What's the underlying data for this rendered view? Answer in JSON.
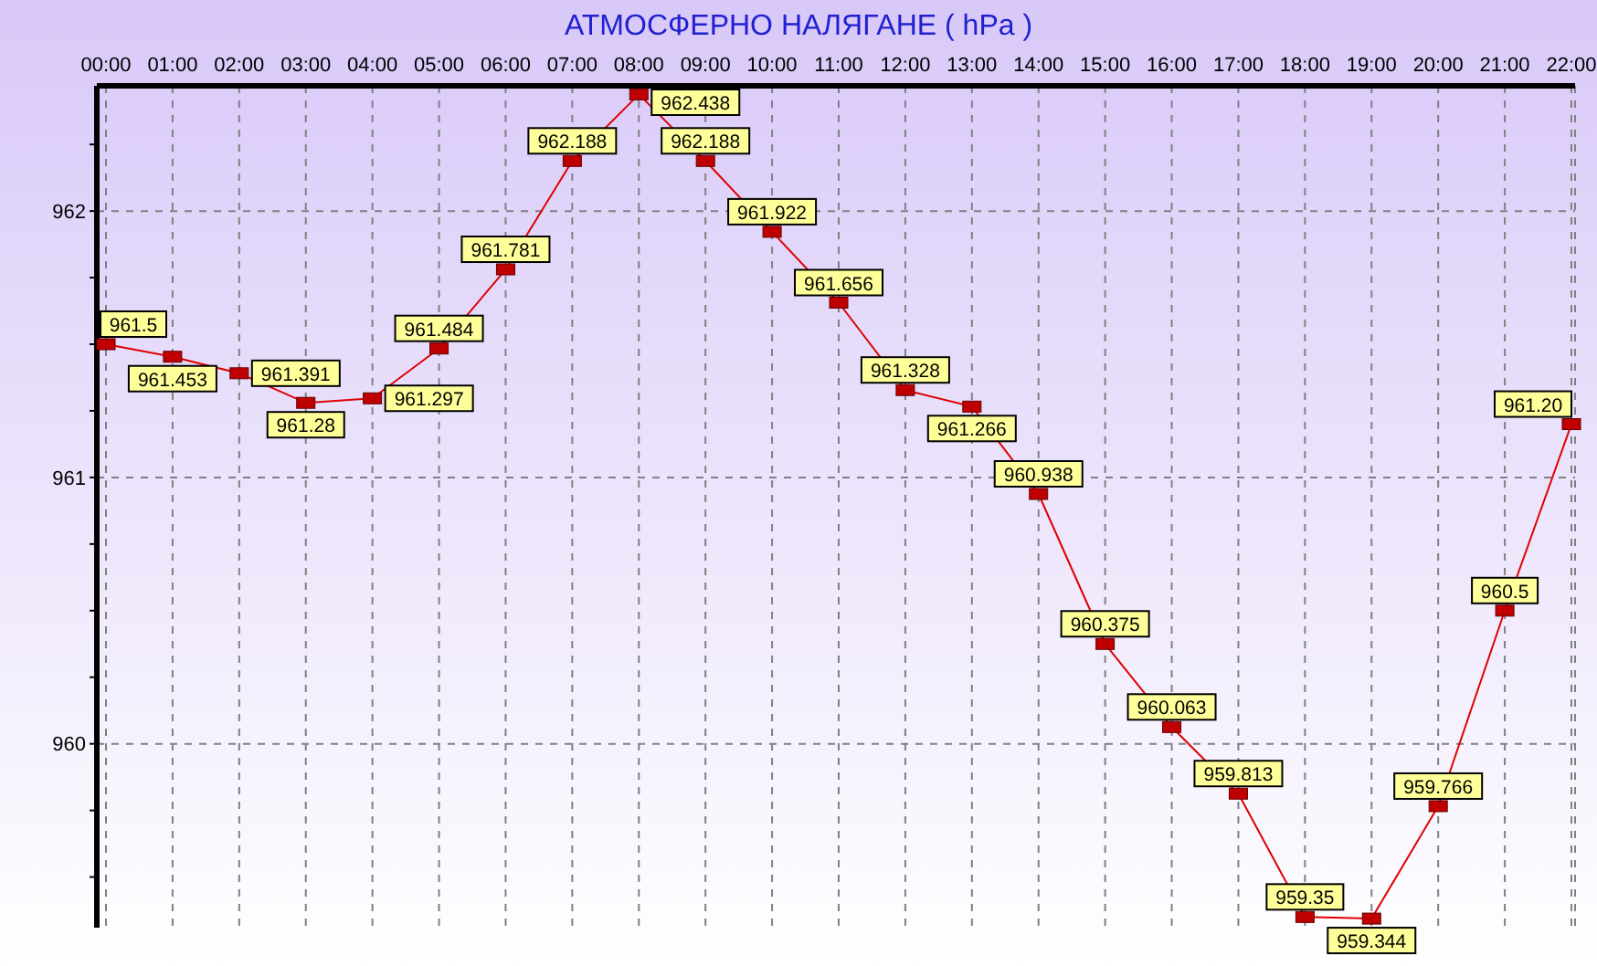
{
  "chart_data": {
    "type": "line",
    "title": "АТМОСФЕРНО НАЛЯГАНЕ  ( hPa )",
    "categories": [
      "00:00",
      "01:00",
      "02:00",
      "03:00",
      "04:00",
      "05:00",
      "06:00",
      "07:00",
      "08:00",
      "09:00",
      "10:00",
      "11:00",
      "12:00",
      "13:00",
      "14:00",
      "15:00",
      "16:00",
      "17:00",
      "18:00",
      "19:00",
      "20:00",
      "21:00",
      "22:00"
    ],
    "series": [
      {
        "color": "#e00000",
        "values": [
          961.5,
          961.453,
          961.391,
          961.28,
          961.297,
          961.484,
          961.781,
          962.188,
          962.438,
          962.188,
          961.922,
          961.656,
          961.328,
          961.266,
          960.938,
          960.375,
          960.063,
          959.813,
          959.35,
          959.344,
          959.766,
          960.5,
          961.2
        ],
        "value_labels": [
          "961.5",
          "961.453",
          "961.391",
          "961.28",
          "961.297",
          "961.484",
          "961.781",
          "962.188",
          "962.438",
          "962.188",
          "961.922",
          "961.656",
          "961.328",
          "961.266",
          "960.938",
          "960.375",
          "960.063",
          "959.813",
          "959.35",
          "959.344",
          "959.766",
          "960.5",
          "961.20"
        ]
      }
    ],
    "ylim": [
      959.31,
      962.47
    ],
    "yticks": [
      {
        "value": 959.5,
        "label": null
      },
      {
        "value": 959.75,
        "label": null
      },
      960,
      {
        "value": 960.25,
        "label": null
      },
      {
        "value": 960.5,
        "label": null
      },
      {
        "value": 960.75,
        "label": null
      },
      961,
      {
        "value": 961.25,
        "label": null
      },
      {
        "value": 961.5,
        "label": null
      },
      {
        "value": 961.75,
        "label": null
      },
      962,
      {
        "value": 962.25,
        "label": null
      }
    ],
    "grid": true,
    "marker": "square",
    "line_style": "solid",
    "legend": false
  }
}
